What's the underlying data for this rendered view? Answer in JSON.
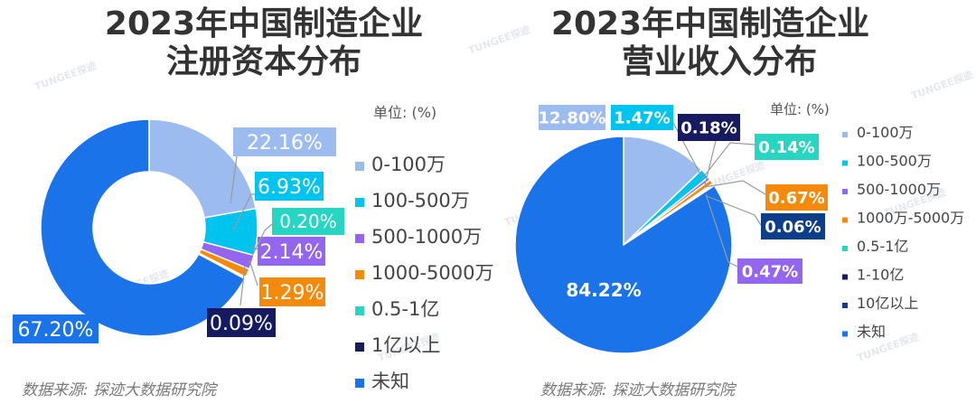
{
  "charts": [
    {
      "title_line1": "2023年中国制造企业",
      "title_line2": "注册资本分布",
      "unit_label": "单位: (%)",
      "source": "数据来源: 探迹大数据研究院",
      "watermark": "TUNGEE探迹"
    },
    {
      "title_line1": "2023年中国制造企业",
      "title_line2": "营业收入分布",
      "unit_label": "单位: (%)",
      "source": "数据来源: 探迹大数据研究院",
      "watermark": "TUNGEE探迹"
    }
  ],
  "chart_data": [
    {
      "type": "donut",
      "title": "2023年中国制造企业注册资本分布",
      "unit": "%",
      "legend_position": "right",
      "slices": [
        {
          "name": "0-100万",
          "value": 22.16,
          "label": "22.16%",
          "color": "#9cbcf0"
        },
        {
          "name": "100-500万",
          "value": 6.93,
          "label": "6.93%",
          "color": "#00c4ee"
        },
        {
          "name": "500-1000万",
          "value": 2.14,
          "label": "2.14%",
          "color": "#9466f0"
        },
        {
          "name": "1000-5000万",
          "value": 1.29,
          "label": "1.29%",
          "color": "#f58a0a"
        },
        {
          "name": "0.5-1亿",
          "value": 0.2,
          "label": "0.20%",
          "color": "#26d6c2"
        },
        {
          "name": "1亿以上",
          "value": 0.09,
          "label": "0.09%",
          "color": "#161a5e"
        },
        {
          "name": "未知",
          "value": 67.2,
          "label": "67.20%",
          "color": "#1a73e8"
        }
      ]
    },
    {
      "type": "pie",
      "title": "2023年中国制造企业营业收入分布",
      "unit": "%",
      "legend_position": "right",
      "slices": [
        {
          "name": "0-100万",
          "value": 12.8,
          "label": "12.80%",
          "color": "#9cbcf0"
        },
        {
          "name": "100-500万",
          "value": 1.47,
          "label": "1.47%",
          "color": "#00c4ee"
        },
        {
          "name": "500-1000万",
          "value": 0.47,
          "label": "0.47%",
          "color": "#9466f0"
        },
        {
          "name": "1000万-5000万",
          "value": 0.67,
          "label": "0.67%",
          "color": "#f58a0a"
        },
        {
          "name": "0.5-1亿",
          "value": 0.14,
          "label": "0.14%",
          "color": "#26d6c2"
        },
        {
          "name": "1-10亿",
          "value": 0.18,
          "label": "0.18%",
          "color": "#161a5e"
        },
        {
          "name": "10亿以上",
          "value": 0.06,
          "label": "0.06%",
          "color": "#0e3d8a"
        },
        {
          "name": "未知",
          "value": 84.22,
          "label": "84.22%",
          "color": "#1a73e8"
        }
      ]
    }
  ]
}
